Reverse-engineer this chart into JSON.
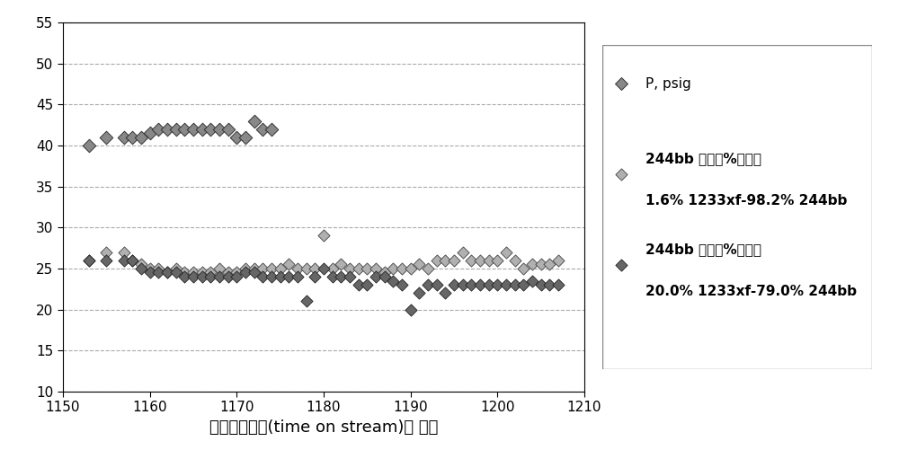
{
  "xlim": [
    1150,
    1210
  ],
  "ylim": [
    10,
    55
  ],
  "yticks": [
    10,
    15,
    20,
    25,
    30,
    35,
    40,
    45,
    50,
    55
  ],
  "xticks": [
    1150,
    1160,
    1170,
    1180,
    1190,
    1200,
    1210
  ],
  "xlabel": "连续在线时间(time on stream)， 小时",
  "grid_color": "#aaaaaa",
  "fig_facecolor": "#ffffff",
  "ax_facecolor": "#ffffff",
  "series1_label": "P, psig",
  "series2_label_line1": "244bb 转化率%，对于",
  "series2_label_line2": "1.6% 1233xf-98.2% 244bb",
  "series3_label_line1": "244bb 转化率%，对于",
  "series3_label_line2": "20.0% 1233xf-79.0% 244bb",
  "series1_x": [
    1153,
    1155,
    1157,
    1158,
    1159,
    1160,
    1161,
    1162,
    1163,
    1164,
    1165,
    1166,
    1167,
    1168,
    1169,
    1170,
    1171,
    1172,
    1173,
    1174
  ],
  "series1_y": [
    40,
    41,
    41,
    41,
    41,
    41.5,
    42,
    42,
    42,
    42,
    42,
    42,
    42,
    42,
    42,
    41,
    41,
    43,
    42,
    42
  ],
  "series2_x": [
    1153,
    1155,
    1157,
    1158,
    1159,
    1160,
    1161,
    1162,
    1163,
    1164,
    1165,
    1166,
    1167,
    1168,
    1169,
    1170,
    1171,
    1172,
    1173,
    1174,
    1175,
    1176,
    1177,
    1178,
    1179,
    1180,
    1181,
    1182,
    1183,
    1184,
    1185,
    1186,
    1187,
    1188,
    1189,
    1190,
    1191,
    1192,
    1193,
    1194,
    1195,
    1196,
    1197,
    1198,
    1199,
    1200,
    1201,
    1202,
    1203,
    1204,
    1205,
    1206,
    1207
  ],
  "series2_y": [
    26,
    27,
    27,
    26,
    25.5,
    25,
    25,
    24.5,
    25,
    24.5,
    24.5,
    24.5,
    24.5,
    25,
    24.5,
    24.5,
    25,
    25,
    25,
    25,
    25,
    25.5,
    25,
    25,
    25,
    29,
    25,
    25.5,
    25,
    25,
    25,
    25,
    24.5,
    25,
    25,
    25,
    25.5,
    25,
    26,
    26,
    26,
    27,
    26,
    26,
    26,
    26,
    27,
    26,
    25,
    25.5,
    25.5,
    25.5,
    26
  ],
  "series3_x": [
    1153,
    1155,
    1157,
    1158,
    1159,
    1160,
    1161,
    1162,
    1163,
    1164,
    1165,
    1166,
    1167,
    1168,
    1169,
    1170,
    1171,
    1172,
    1173,
    1174,
    1175,
    1176,
    1177,
    1178,
    1179,
    1180,
    1181,
    1182,
    1183,
    1184,
    1185,
    1186,
    1187,
    1188,
    1189,
    1190,
    1191,
    1192,
    1193,
    1194,
    1195,
    1196,
    1197,
    1198,
    1199,
    1200,
    1201,
    1202,
    1203,
    1204,
    1205,
    1206,
    1207
  ],
  "series3_y": [
    26,
    26,
    26,
    26,
    25,
    24.5,
    24.5,
    24.5,
    24.5,
    24,
    24,
    24,
    24,
    24,
    24,
    24,
    24.5,
    24.5,
    24,
    24,
    24,
    24,
    24,
    21,
    24,
    25,
    24,
    24,
    24,
    23,
    23,
    24,
    24,
    23.5,
    23,
    20,
    22,
    23,
    23,
    22,
    23,
    23,
    23,
    23,
    23,
    23,
    23,
    23,
    23,
    23.5,
    23,
    23,
    23
  ],
  "tick_fontsize": 11,
  "xlabel_fontsize": 13,
  "legend_fontsize": 11
}
